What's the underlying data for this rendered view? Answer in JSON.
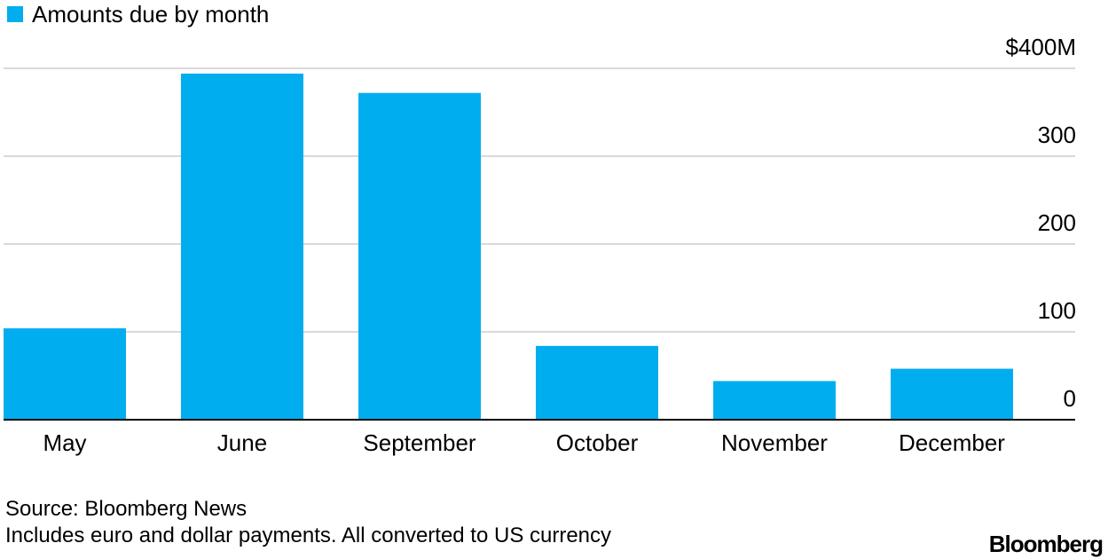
{
  "chart_data": {
    "type": "bar",
    "legend": {
      "label": "Amounts due by month",
      "position": "top-left"
    },
    "categories": [
      "May",
      "June",
      "September",
      "October",
      "November",
      "December"
    ],
    "series": [
      {
        "name": "Amounts due by month",
        "values": [
          104,
          394,
          372,
          84,
          44,
          58
        ]
      }
    ],
    "ylim": [
      0,
      400
    ],
    "yticks": [
      {
        "value": 0,
        "label": "0"
      },
      {
        "value": 100,
        "label": "100"
      },
      {
        "value": 200,
        "label": "200"
      },
      {
        "value": 300,
        "label": "300"
      },
      {
        "value": 400,
        "label": "$400M"
      }
    ],
    "y_axis_side": "right",
    "grid": true,
    "bar_color": "#00AEEF",
    "grid_color": "#D9D9D9"
  },
  "footer": {
    "source": "Source: Bloomberg News",
    "note": "Includes euro and dollar payments. All converted to US currency"
  },
  "brand": "Bloomberg"
}
